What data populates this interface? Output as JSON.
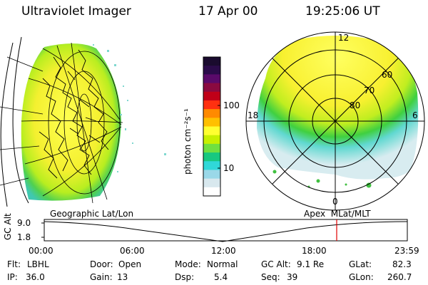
{
  "header": {
    "instrument": "Ultraviolet Imager",
    "date": "17 Apr 00",
    "time": "19:25:06 UT"
  },
  "colorbar": {
    "unit_label": "photon cm⁻²s⁻¹",
    "ticks": [
      "100",
      "10"
    ],
    "colors": [
      "#1a0b2e",
      "#2b0b4a",
      "#5a0a6a",
      "#8a0a40",
      "#c00018",
      "#ff3010",
      "#ff8a00",
      "#ffc000",
      "#ffff30",
      "#c8f000",
      "#70e040",
      "#18c880",
      "#30d8d8",
      "#9ad8e8",
      "#d8e8ee",
      "#ffffff"
    ]
  },
  "left_panel": {
    "caption": "Geographic Lat/Lon"
  },
  "right_panel": {
    "caption": "Apex  MLat/MLT",
    "mlt_labels": {
      "top": "12",
      "left": "18",
      "right": "6",
      "bottom": "0"
    },
    "lat_labels": [
      "60",
      "70",
      "80"
    ]
  },
  "timeline": {
    "axis_label": "GC Alt",
    "y_ticks": [
      "9.0",
      "1.8"
    ],
    "x_ticks": [
      "00:00",
      "06:00",
      "12:00",
      "18:00",
      "23:59"
    ],
    "marker_color": "#e00000"
  },
  "status": {
    "flt": {
      "label": "Flt:",
      "value": "LBHL"
    },
    "ip": {
      "label": "IP:",
      "value": "36.0"
    },
    "door": {
      "label": "Door:",
      "value": "Open"
    },
    "gain": {
      "label": "Gain:",
      "value": "13"
    },
    "mode": {
      "label": "Mode:",
      "value": "Normal"
    },
    "dsp": {
      "label": "Dsp:",
      "value": "5.4"
    },
    "gcalt": {
      "label": "GC Alt:",
      "value": "9.1 Re"
    },
    "seq": {
      "label": "Seq:",
      "value": "39"
    },
    "glat": {
      "label": "GLat:",
      "value": "82.3"
    },
    "glon": {
      "label": "GLon:",
      "value": "260.7"
    }
  }
}
